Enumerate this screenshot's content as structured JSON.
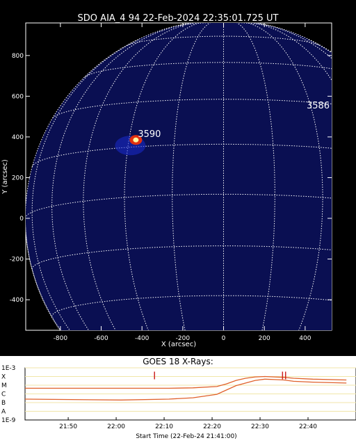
{
  "chart_data": [
    {
      "type": "image",
      "title": "SDO AIA_4 94 22-Feb-2024 22:35:01.725 UT",
      "xlabel": "X (arcsec)",
      "ylabel": "Y (arcsec)",
      "xlim": [
        -970,
        530
      ],
      "ylim": [
        -550,
        960
      ],
      "xticks": [
        -800,
        -600,
        -400,
        -200,
        0,
        200,
        400
      ],
      "yticks": [
        -400,
        -200,
        0,
        200,
        400,
        600,
        800
      ],
      "grid": true,
      "limb_radius_arcsec": 972,
      "regions": [
        {
          "label": "3590",
          "x": -420,
          "y": 400
        },
        {
          "label": "3586",
          "x": 520,
          "y": 540
        }
      ],
      "flare": {
        "x": -430,
        "y": 385
      }
    },
    {
      "type": "line",
      "title": "GOES 18 X-Rays:",
      "xlabel": "Start Time (22-Feb-24 21:41:00)",
      "y_scale": "log",
      "ylim": [
        "1E-9",
        "1E-3"
      ],
      "ytick_labels": [
        "1E-3",
        "X",
        "M",
        "C",
        "B",
        "A",
        "1E-9"
      ],
      "xticks": [
        "21:50",
        "22:00",
        "22:10",
        "22:20",
        "22:30",
        "22:40"
      ],
      "x_minutes": [
        0,
        20,
        30,
        35,
        40,
        42,
        44,
        46,
        48,
        50,
        52,
        54,
        56,
        60,
        67
      ],
      "series": [
        {
          "values_log10": [
            -5.35,
            -5.35,
            -5.35,
            -5.3,
            -5.15,
            -4.85,
            -4.45,
            -4.2,
            -4.05,
            -4.0,
            -4.05,
            -4.1,
            -4.2,
            -4.3,
            -4.4
          ]
        },
        {
          "values_log10": [
            -6.6,
            -6.7,
            -6.6,
            -6.45,
            -6.05,
            -5.55,
            -5.05,
            -4.75,
            -4.45,
            -4.3,
            -4.35,
            -4.4,
            -4.55,
            -4.65,
            -4.75
          ]
        }
      ],
      "annotations": [
        "I",
        "II"
      ],
      "colors": {
        "curve": "#e0602a",
        "annotation": "#cc2222",
        "band": "#f0e6a8"
      }
    }
  ]
}
